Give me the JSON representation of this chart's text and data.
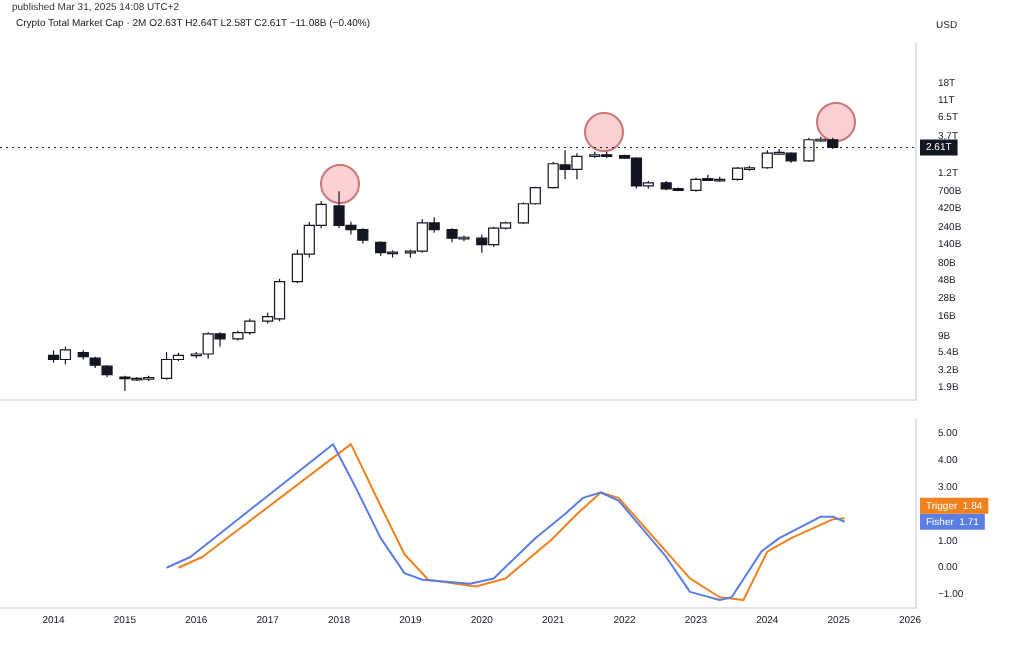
{
  "chart_data": [
    {
      "type": "candlestick",
      "title": "Crypto Total Market Cap · 2M",
      "subtitle": "O2.63T H2.64T L2.58T C2.61T −11.08B (−0.40%)",
      "annotations": [
        "published Mar 31, 2025 14:08 UTC+2"
      ],
      "ylabel": "USD",
      "log": true,
      "tick_labels": "y",
      "xlim": [
        "2013-04",
        "2026-02"
      ],
      "xticks": [
        "2014",
        "2015",
        "2016",
        "2017",
        "2018",
        "2019",
        "2020",
        "2021",
        "2022",
        "2023",
        "2024",
        "2025",
        "2026"
      ],
      "ylim": [
        1300000000.0,
        59000000000000.0
      ],
      "yticks": [
        {
          "value": 1900000000.0,
          "label": "1.9B"
        },
        {
          "value": 3200000000.0,
          "label": "3.2B"
        },
        {
          "value": 5400000000.0,
          "label": "5.4B"
        },
        {
          "value": 9000000000.0,
          "label": "9B"
        },
        {
          "value": 16000000000.0,
          "label": "16B"
        },
        {
          "value": 28000000000.0,
          "label": "28B"
        },
        {
          "value": 48000000000.0,
          "label": "48B"
        },
        {
          "value": 80000000000.0,
          "label": "80B"
        },
        {
          "value": 140000000000.0,
          "label": "140B"
        },
        {
          "value": 240000000000.0,
          "label": "240B"
        },
        {
          "value": 420000000000.0,
          "label": "420B"
        },
        {
          "value": 700000000000.0,
          "label": "700B"
        },
        {
          "value": 1200000000000.0,
          "label": "1.2T"
        },
        {
          "value": 3700000000000.0,
          "label": "3.7T"
        },
        {
          "value": 6500000000000.0,
          "label": "6.5T"
        },
        {
          "value": 11000000000000.0,
          "label": "11T"
        },
        {
          "value": 18000000000000.0,
          "label": "18T"
        }
      ],
      "ref_lines": [
        {
          "axis": "y",
          "value": 2610000000000.0,
          "label": "2.61T",
          "color": "#131722",
          "line_style": "dotted"
        }
      ],
      "x": [
        "2014-01",
        "2014-03",
        "2014-06",
        "2014-08",
        "2014-10",
        "2015-01",
        "2015-03",
        "2015-05",
        "2015-08",
        "2015-10",
        "2016-01",
        "2016-03",
        "2016-05",
        "2016-08",
        "2016-10",
        "2017-01",
        "2017-03",
        "2017-06",
        "2017-08",
        "2017-10",
        "2018-01",
        "2018-03",
        "2018-05",
        "2018-08",
        "2018-10",
        "2019-01",
        "2019-03",
        "2019-05",
        "2019-08",
        "2019-10",
        "2020-01",
        "2020-03",
        "2020-05",
        "2020-08",
        "2020-10",
        "2021-01",
        "2021-03",
        "2021-05",
        "2021-08",
        "2021-10",
        "2022-01",
        "2022-03",
        "2022-05",
        "2022-08",
        "2022-10",
        "2023-01",
        "2023-03",
        "2023-05",
        "2023-08",
        "2023-10",
        "2024-01",
        "2024-03",
        "2024-05",
        "2024-08",
        "2024-10",
        "2024-12"
      ],
      "ohlc": [
        [
          5000000000.0,
          5800000000.0,
          4000000000.0,
          4400000000.0
        ],
        [
          4400000000.0,
          6500000000.0,
          3800000000.0,
          5900000000.0
        ],
        [
          5400000000.0,
          5800000000.0,
          4400000000.0,
          4800000000.0
        ],
        [
          4600000000.0,
          4800000000.0,
          3400000000.0,
          3700000000.0
        ],
        [
          3600000000.0,
          3700000000.0,
          2600000000.0,
          2800000000.0
        ],
        [
          2600000000.0,
          2700000000.0,
          1700000000.0,
          2500000000.0
        ],
        [
          2500000000.0,
          2600000000.0,
          2300000000.0,
          2500000000.0
        ],
        [
          2500000000.0,
          2700000000.0,
          2300000000.0,
          2550000000.0
        ],
        [
          2500000000.0,
          5500000000.0,
          2400000000.0,
          4400000000.0
        ],
        [
          4400000000.0,
          5400000000.0,
          4200000000.0,
          5000000000.0
        ],
        [
          5000000000.0,
          5500000000.0,
          4600000000.0,
          5200000000.0
        ],
        [
          5200000000.0,
          10000000000.0,
          4500000000.0,
          9500000000.0
        ],
        [
          9500000000.0,
          10000000000.0,
          6500000000.0,
          8200000000.0
        ],
        [
          8200000000.0,
          10500000000.0,
          7800000000.0,
          9900000000.0
        ],
        [
          9900000000.0,
          15000000000.0,
          9300000000.0,
          14000000000.0
        ],
        [
          14000000000.0,
          18000000000.0,
          13000000000.0,
          16000000000.0
        ],
        [
          15000000000.0,
          50000000000.0,
          14000000000.0,
          46000000000.0
        ],
        [
          46000000000.0,
          120000000000.0,
          44000000000.0,
          105000000000.0
        ],
        [
          105000000000.0,
          280000000000.0,
          95000000000.0,
          250000000000.0
        ],
        [
          250000000000.0,
          520000000000.0,
          230000000000.0,
          470000000000.0
        ],
        [
          450000000000.0,
          700000000000.0,
          230000000000.0,
          250000000000.0
        ],
        [
          250000000000.0,
          280000000000.0,
          190000000000.0,
          220000000000.0
        ],
        [
          220000000000.0,
          230000000000.0,
          145000000000.0,
          160000000000.0
        ],
        [
          150000000000.0,
          155000000000.0,
          100000000000.0,
          110000000000.0
        ],
        [
          110000000000.0,
          118000000000.0,
          95000000000.0,
          112000000000.0
        ],
        [
          112000000000.0,
          120000000000.0,
          95000000000.0,
          115000000000.0
        ],
        [
          115000000000.0,
          300000000000.0,
          110000000000.0,
          270000000000.0
        ],
        [
          270000000000.0,
          320000000000.0,
          200000000000.0,
          220000000000.0
        ],
        [
          220000000000.0,
          230000000000.0,
          150000000000.0,
          170000000000.0
        ],
        [
          170000000000.0,
          185000000000.0,
          155000000000.0,
          175000000000.0
        ],
        [
          170000000000.0,
          190000000000.0,
          110000000000.0,
          140000000000.0
        ],
        [
          140000000000.0,
          240000000000.0,
          130000000000.0,
          230000000000.0
        ],
        [
          230000000000.0,
          280000000000.0,
          220000000000.0,
          270000000000.0
        ],
        [
          270000000000.0,
          500000000000.0,
          260000000000.0,
          480000000000.0
        ],
        [
          480000000000.0,
          800000000000.0,
          470000000000.0,
          780000000000.0
        ],
        [
          780000000000.0,
          1700000000000.0,
          760000000000.0,
          1600000000000.0
        ],
        [
          1550000000000.0,
          2400000000000.0,
          1000000000000.0,
          1350000000000.0
        ],
        [
          1350000000000.0,
          2200000000000.0,
          1000000000000.0,
          2000000000000.0
        ],
        [
          2000000000000.0,
          2300000000000.0,
          1900000000000.0,
          2100000000000.0
        ],
        [
          2100000000000.0,
          2300000000000.0,
          1900000000000.0,
          2050000000000.0
        ],
        [
          2050000000000.0,
          2100000000000.0,
          1850000000000.0,
          1900000000000.0
        ],
        [
          1900000000000.0,
          1950000000000.0,
          760000000000.0,
          820000000000.0
        ],
        [
          820000000000.0,
          950000000000.0,
          760000000000.0,
          900000000000.0
        ],
        [
          900000000000.0,
          950000000000.0,
          720000000000.0,
          750000000000.0
        ],
        [
          760000000000.0,
          780000000000.0,
          700000000000.0,
          720000000000.0
        ],
        [
          720000000000.0,
          1050000000000.0,
          690000000000.0,
          1000000000000.0
        ],
        [
          1020000000000.0,
          1150000000000.0,
          950000000000.0,
          990000000000.0
        ],
        [
          990000000000.0,
          1080000000000.0,
          930000000000.0,
          1000000000000.0
        ],
        [
          1000000000000.0,
          1450000000000.0,
          960000000000.0,
          1400000000000.0
        ],
        [
          1400000000000.0,
          1500000000000.0,
          1300000000000.0,
          1420000000000.0
        ],
        [
          1420000000000.0,
          2400000000000.0,
          1380000000000.0,
          2200000000000.0
        ],
        [
          2200000000000.0,
          2500000000000.0,
          2100000000000.0,
          2250000000000.0
        ],
        [
          2200000000000.0,
          2250000000000.0,
          1650000000000.0,
          1750000000000.0
        ],
        [
          1750000000000.0,
          3500000000000.0,
          1700000000000.0,
          3300000000000.0
        ],
        [
          3300000000000.0,
          3600000000000.0,
          3100000000000.0,
          3350000000000.0
        ],
        [
          3300000000000.0,
          3500000000000.0,
          2500000000000.0,
          2610000000000.0
        ]
      ]
    },
    {
      "type": "line",
      "legend": false,
      "xlim": [
        "2013-04",
        "2026-02"
      ],
      "xticks": [
        "2014",
        "2015",
        "2016",
        "2017",
        "2018",
        "2019",
        "2020",
        "2021",
        "2022",
        "2023",
        "2024",
        "2025",
        "2026"
      ],
      "ylim": [
        -1.5,
        5.5
      ],
      "yticks": [
        {
          "value": -1,
          "label": "−1.00"
        },
        {
          "value": 0,
          "label": "0.00"
        },
        {
          "value": 1,
          "label": "1.00"
        },
        {
          "value": 3,
          "label": "3.00"
        },
        {
          "value": 4,
          "label": "4.00"
        },
        {
          "value": 5,
          "label": "5.00"
        }
      ],
      "series": [
        {
          "name": "Fisher",
          "color": "#5b7ee5",
          "x": [
            "2015-08",
            "2015-12",
            "2017-12",
            "2018-04",
            "2018-08",
            "2018-12",
            "2019-03",
            "2019-11",
            "2020-03",
            "2020-10",
            "2021-03",
            "2021-06",
            "2021-09",
            "2021-12",
            "2022-08",
            "2022-12",
            "2023-05",
            "2023-07",
            "2023-12",
            "2024-03",
            "2024-10",
            "2024-12",
            "2025-02"
          ],
          "values": [
            0.0,
            0.4,
            4.6,
            2.9,
            1.1,
            -0.2,
            -0.45,
            -0.6,
            -0.4,
            1.1,
            2.0,
            2.6,
            2.8,
            2.5,
            0.4,
            -0.9,
            -1.2,
            -1.1,
            0.6,
            1.1,
            1.9,
            1.9,
            1.71
          ],
          "value_labels": [
            null,
            null,
            null,
            null,
            null,
            null,
            null,
            null,
            null,
            null,
            null,
            null,
            null,
            null,
            null,
            null,
            null,
            null,
            null,
            null,
            null,
            null,
            "1.71"
          ]
        },
        {
          "name": "Trigger",
          "color": "#f0821e",
          "x": [
            "2015-10",
            "2016-02",
            "2018-03",
            "2018-08",
            "2018-12",
            "2019-04",
            "2019-12",
            "2020-05",
            "2021-01",
            "2021-05",
            "2021-09",
            "2021-12",
            "2022-12",
            "2023-05",
            "2023-09",
            "2024-01",
            "2024-05",
            "2024-12",
            "2025-02"
          ],
          "values": [
            0.0,
            0.4,
            4.6,
            2.3,
            0.5,
            -0.45,
            -0.7,
            -0.4,
            1.1,
            2.0,
            2.8,
            2.6,
            -0.4,
            -1.1,
            -1.2,
            0.6,
            1.1,
            1.8,
            1.84
          ],
          "value_labels": [
            null,
            null,
            null,
            null,
            null,
            null,
            null,
            null,
            null,
            null,
            null,
            null,
            null,
            null,
            null,
            null,
            null,
            null,
            "1.84"
          ]
        }
      ]
    }
  ]
}
